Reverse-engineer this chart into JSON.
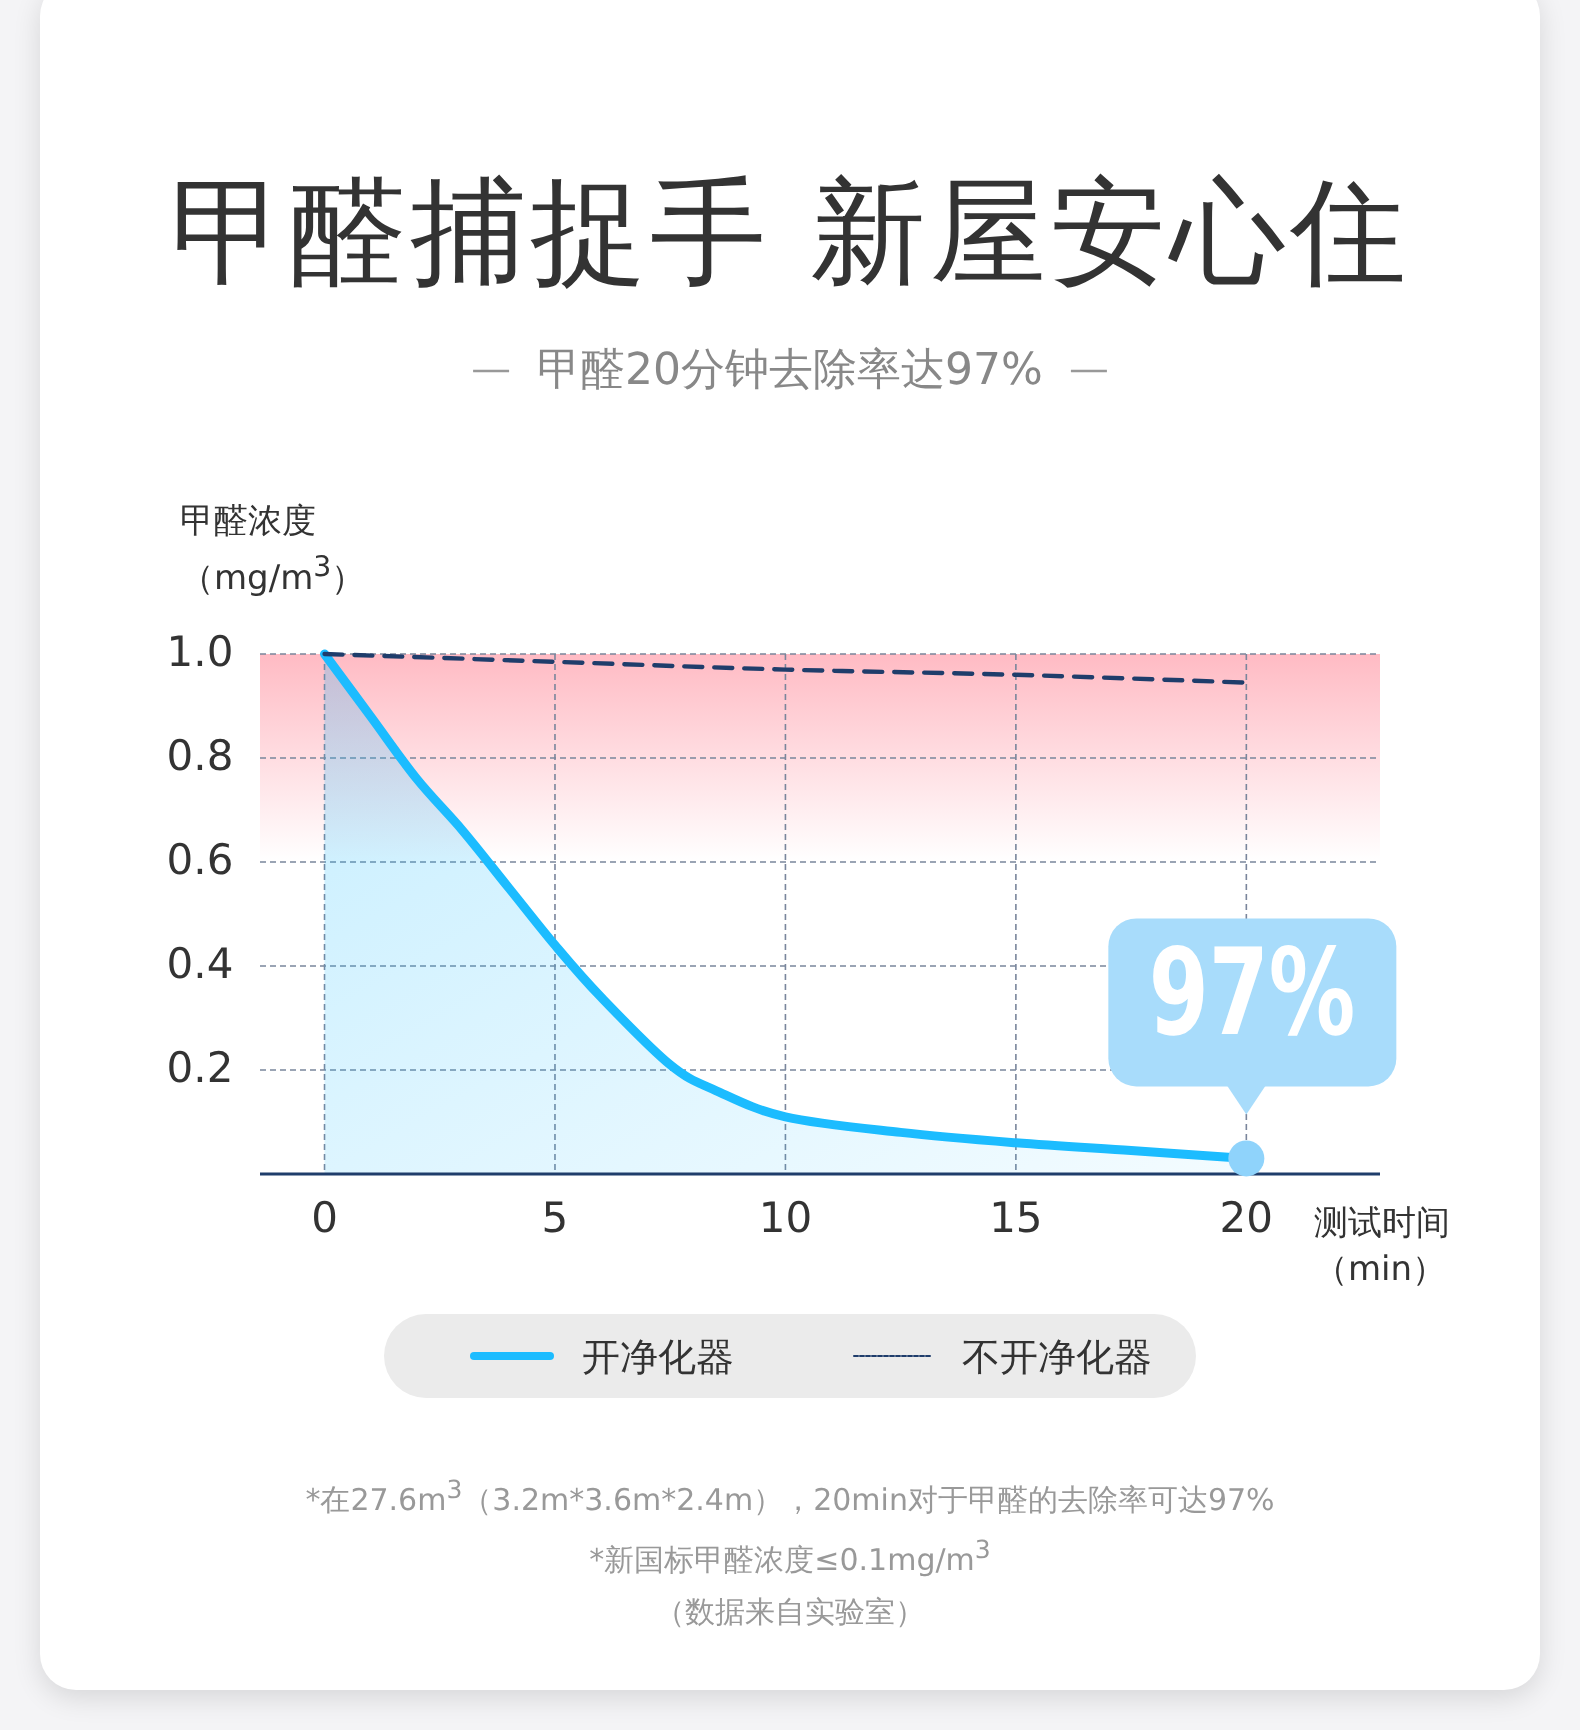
{
  "chart_data": {
    "type": "line",
    "title": "甲醛捕捉手  新屋安心住",
    "subtitle": "甲醛20分钟去除率达97%",
    "ylabel": "甲醛浓度（mg/m$^{3}$）",
    "xlabel": "测试时间（min）",
    "x": [
      0,
      1,
      2,
      3,
      4,
      5,
      6,
      7.5,
      8.5,
      10,
      12.5,
      15,
      17.5,
      20
    ],
    "series": [
      {
        "name": "开净化器",
        "type": "area",
        "color": "#1cbcff",
        "line_style": "solid",
        "values": [
          1.0,
          0.88,
          0.76,
          0.66,
          0.55,
          0.44,
          0.34,
          0.21,
          0.16,
          0.11,
          0.08,
          0.06,
          0.045,
          0.03
        ]
      },
      {
        "name": "不开净化器",
        "color": "#1f3d6b",
        "line_style": "dashed",
        "x": [
          0,
          5,
          10,
          15,
          20
        ],
        "values": [
          1.0,
          0.985,
          0.97,
          0.96,
          0.945
        ]
      }
    ],
    "xlim": [
      -1.4,
      22.9
    ],
    "ylim": [
      0,
      1.0
    ],
    "xticks": [
      0,
      5,
      10,
      15,
      20
    ],
    "yticks": [
      {
        "value": 0.2,
        "label": "0.2"
      },
      {
        "value": 0.4,
        "label": "0.4"
      },
      {
        "value": 0.6,
        "label": "0.6"
      },
      {
        "value": 0.8,
        "label": "0.8"
      },
      {
        "value": 1.0,
        "label": "1.0"
      }
    ],
    "grid": true,
    "legend": "bottom",
    "bands": [
      {
        "axis": "y",
        "from": 0.6,
        "to": 1.0,
        "color": "#ffb3bd"
      }
    ],
    "annotations": [
      {
        "text": "97%",
        "x": 20,
        "y": 0.03
      },
      "*在27.6m$^{3}$（3.2m*3.6m*2.4m），20min对于甲醛的去除率可达97%",
      "*新国标甲醛浓度≤0.1mg/m$^{3}$",
      "（数据来自实验室）"
    ]
  }
}
